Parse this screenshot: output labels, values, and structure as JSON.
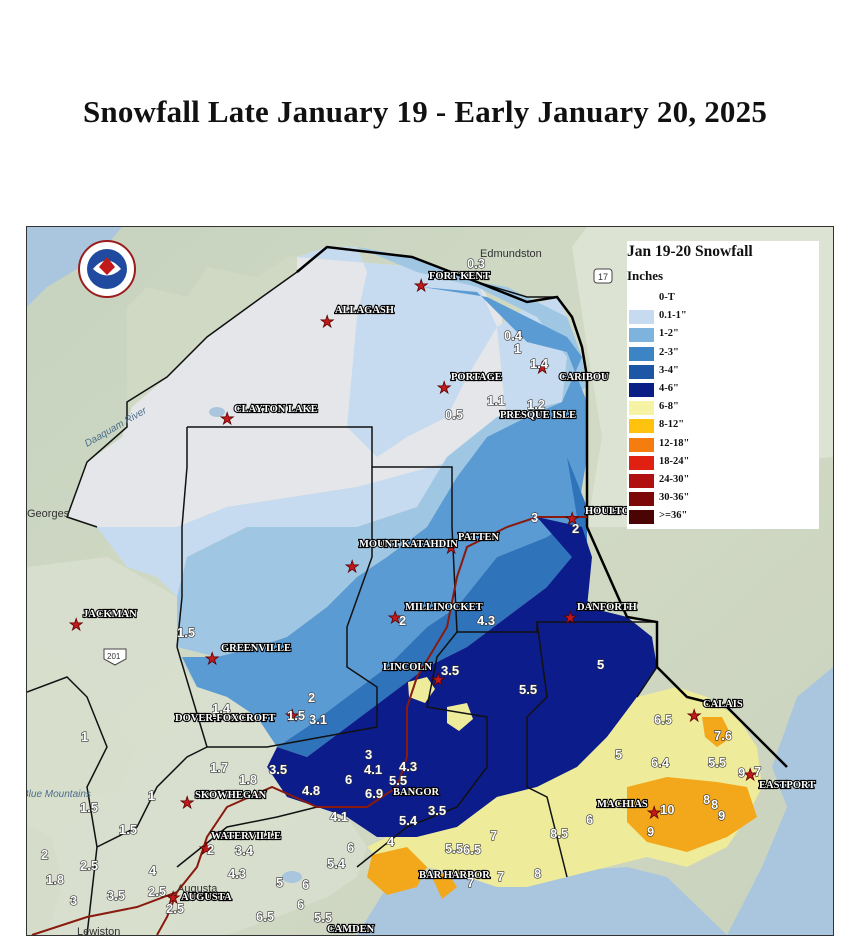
{
  "title": "Snowfall Late January 19 - Early January 20, 2025",
  "logo": {
    "icon": "nws-logo",
    "text": "NATIONAL WEATHER SERVICE"
  },
  "legend": {
    "title": "Jan 19-20 Snowfall",
    "units": "Inches",
    "items": [
      {
        "label": "0-T",
        "color": "#ffffff"
      },
      {
        "label": "0.1-1\"",
        "color": "#c6dbef"
      },
      {
        "label": "1-2\"",
        "color": "#7db3dc"
      },
      {
        "label": "2-3\"",
        "color": "#3d84c4"
      },
      {
        "label": "3-4\"",
        "color": "#1d56a5"
      },
      {
        "label": "4-6\"",
        "color": "#0a1f86"
      },
      {
        "label": "6-8\"",
        "color": "#f6f3a4"
      },
      {
        "label": "8-12\"",
        "color": "#ffc20e"
      },
      {
        "label": "12-18\"",
        "color": "#f57c0e"
      },
      {
        "label": "18-24\"",
        "color": "#e02010"
      },
      {
        "label": "24-30\"",
        "color": "#b01010"
      },
      {
        "label": "30-36\"",
        "color": "#7c0808"
      },
      {
        "label": ">=36\"",
        "color": "#4a0404"
      }
    ]
  },
  "basemap_labels": [
    {
      "text": "Edmundston"
    },
    {
      "text": "Georges"
    },
    {
      "text": "Daaquam River"
    },
    {
      "text": "Blue Mountains"
    },
    {
      "text": "Augusta"
    },
    {
      "text": "Lewiston"
    },
    {
      "text": "17"
    },
    {
      "text": "201"
    }
  ],
  "towns": [
    {
      "name": "FORT KENT"
    },
    {
      "name": "ALLAGASH"
    },
    {
      "name": "PORTAGE"
    },
    {
      "name": "CARIBOU"
    },
    {
      "name": "PRESQUE ISLE"
    },
    {
      "name": "CLAYTON LAKE"
    },
    {
      "name": "HOULTON"
    },
    {
      "name": "PATTEN"
    },
    {
      "name": "MOUNT KATAHDIN"
    },
    {
      "name": "MILLINOCKET"
    },
    {
      "name": "DANFORTH"
    },
    {
      "name": "JACKMAN"
    },
    {
      "name": "GREENVILLE"
    },
    {
      "name": "LINCOLN"
    },
    {
      "name": "DOVER-FOXCROFT"
    },
    {
      "name": "CALAIS"
    },
    {
      "name": "SKOWHEGAN"
    },
    {
      "name": "BANGOR"
    },
    {
      "name": "EASTPORT"
    },
    {
      "name": "MACHIAS"
    },
    {
      "name": "WATERVILLE"
    },
    {
      "name": "BAR HARBOR"
    },
    {
      "name": "AUGUSTA"
    },
    {
      "name": "CAMDEN"
    }
  ],
  "snow_reports": [
    "0.3",
    "0.4",
    "1",
    "1.4",
    "1.1",
    "1.2",
    "0.5",
    "3",
    "2",
    "2",
    "4.3",
    "1.5",
    "5",
    "3.5",
    "5.5",
    "2",
    "1.4",
    "1.5",
    "3.1",
    "6.5",
    "7.6",
    "3",
    "4.1",
    "4.3",
    "1",
    "1.7",
    "3.5",
    "1.8",
    "6",
    "5.5",
    "6.4",
    "5.5",
    "9",
    "7",
    "4.8",
    "6.9",
    "5",
    "1",
    "1.5",
    "1.5",
    "3.5",
    "4.1",
    "5.4",
    "8",
    "8",
    "10",
    "9",
    "6",
    "8.5",
    "9",
    "4",
    "2",
    "3.4",
    "2",
    "4",
    "5.5",
    "7",
    "6",
    "5.4",
    "1.8",
    "2.5",
    "3.5",
    "2.5",
    "3",
    "4.3",
    "5",
    "6",
    "2.5",
    "6.5",
    "5.5",
    "6",
    "8",
    "7",
    "6.5",
    "7"
  ]
}
